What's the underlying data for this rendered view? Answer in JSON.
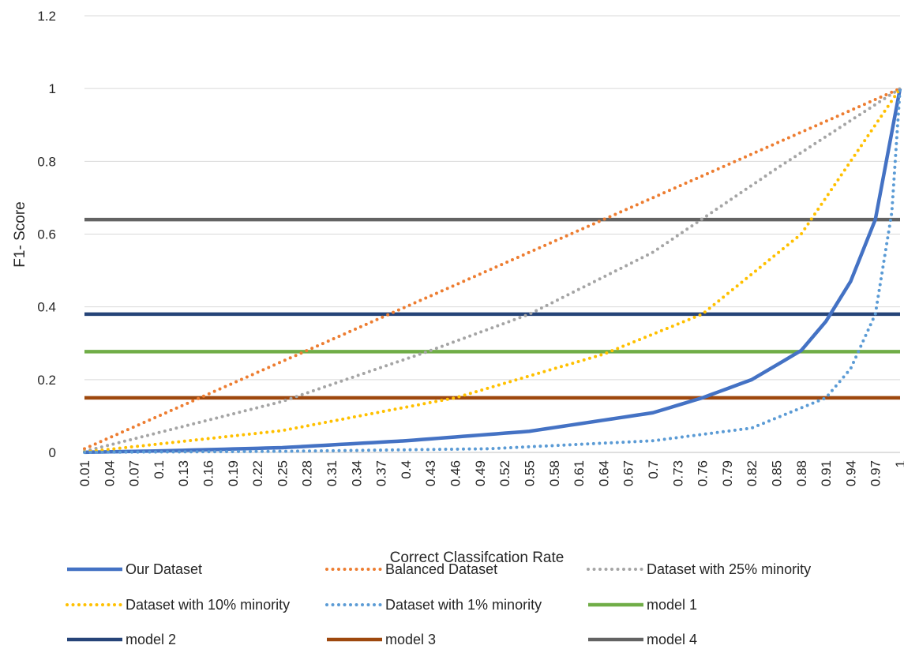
{
  "chart_data": {
    "type": "line",
    "xlabel": "Correct Classifcation Rate",
    "ylabel": "F1- Score",
    "ylim": [
      0,
      1.2
    ],
    "yticks": [
      "0",
      "0.2",
      "0.4",
      "0.6",
      "0.8",
      "1",
      "1.2"
    ],
    "xticks": [
      "0.01",
      "0.04",
      "0.07",
      "0.1",
      "0.13",
      "0.16",
      "0.19",
      "0.22",
      "0.25",
      "0.28",
      "0.31",
      "0.34",
      "0.37",
      "0.4",
      "0.43",
      "0.46",
      "0.49",
      "0.52",
      "0.55",
      "0.58",
      "0.61",
      "0.64",
      "0.67",
      "0.7",
      "0.73",
      "0.76",
      "0.79",
      "0.82",
      "0.85",
      "0.88",
      "0.91",
      "0.94",
      "0.97",
      "1"
    ],
    "grid": "horizontal",
    "legend_position": "bottom",
    "series": [
      {
        "name": "Our Dataset",
        "style": "solid",
        "color": "#4472C4",
        "y_at_x": {
          "0.01": 0.0003,
          "0.10": 0.004,
          "0.25": 0.013,
          "0.40": 0.032,
          "0.55": 0.058,
          "0.70": 0.109,
          "0.76": 0.15,
          "0.82": 0.2,
          "0.88": 0.28,
          "0.91": 0.36,
          "0.94": 0.47,
          "0.97": 0.64,
          "1.00": 1.0
        }
      },
      {
        "name": "Balanced Dataset",
        "style": "dotted",
        "color": "#ED7D31",
        "y_at_x": {
          "0.01": 0.01,
          "0.25": 0.25,
          "0.50": 0.5,
          "0.75": 0.75,
          "1.00": 1.0
        }
      },
      {
        "name": "Dataset with 25% minority",
        "style": "dotted",
        "color": "#A5A5A5",
        "y_at_x": {
          "0.01": 0.003,
          "0.25": 0.14,
          "0.43": 0.28,
          "0.55": 0.38,
          "0.70": 0.55,
          "0.85": 0.78,
          "1.00": 1.0
        }
      },
      {
        "name": "Dataset with 10% minority",
        "style": "dotted",
        "color": "#FFC000",
        "y_at_x": {
          "0.01": 0.001,
          "0.25": 0.06,
          "0.46": 0.15,
          "0.64": 0.27,
          "0.76": 0.38,
          "0.88": 0.6,
          "1.00": 1.0
        }
      },
      {
        "name": "Dataset with 1% minority",
        "style": "dotted",
        "color": "#5B9BD5",
        "y_at_x": {
          "0.01": 0.0001,
          "0.25": 0.003,
          "0.50": 0.01,
          "0.70": 0.032,
          "0.82": 0.067,
          "0.91": 0.15,
          "0.94": 0.23,
          "0.97": 0.38,
          "0.99": 0.66,
          "1.00": 1.0
        }
      },
      {
        "name": "model 1",
        "style": "solid",
        "color": "#70AD47",
        "constant": 0.277
      },
      {
        "name": "model 2",
        "style": "solid",
        "color": "#264478",
        "constant": 0.38
      },
      {
        "name": "model 3",
        "style": "solid",
        "color": "#9E480E",
        "constant": 0.15
      },
      {
        "name": "model 4",
        "style": "solid",
        "color": "#636363",
        "constant": 0.64
      }
    ]
  }
}
